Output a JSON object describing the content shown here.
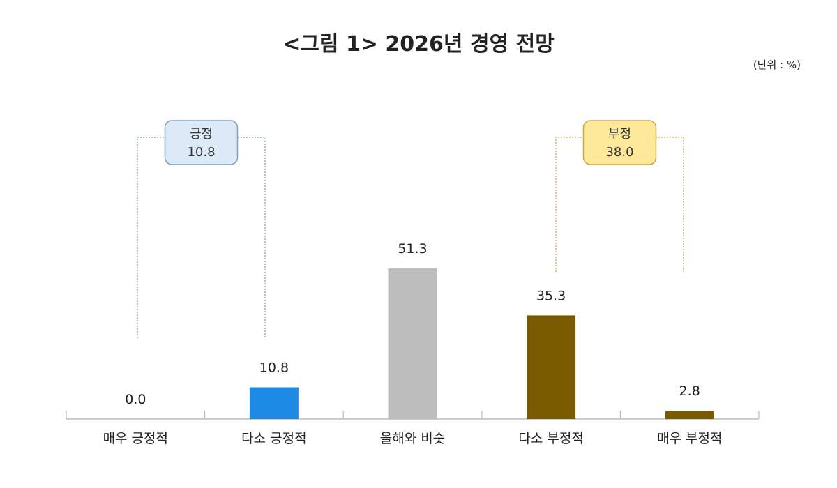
{
  "chart_data": {
    "type": "bar",
    "title": "<그림 1> 2026년 경영 전망",
    "unit": "(단위 : %)",
    "categories": [
      "매우 긍정적",
      "다소 긍정적",
      "올해와 비슷",
      "다소 부정적",
      "매우 부정적"
    ],
    "values": [
      0.0,
      10.8,
      51.3,
      35.3,
      2.8
    ],
    "value_labels": [
      "0.0",
      "10.8",
      "51.3",
      "35.3",
      "2.8"
    ],
    "colors": [
      "#1e88e5",
      "#1e88e5",
      "#bdbdbd",
      "#7a5a00",
      "#7a5a00"
    ],
    "grid": false,
    "groups": [
      {
        "label": "긍정",
        "value": "10.8",
        "categories": [
          0,
          1
        ],
        "fill": "#dce9f7",
        "stroke": "#7f9fbf"
      },
      {
        "label": "부정",
        "value": "38.0",
        "categories": [
          3,
          4
        ],
        "fill": "#fde89a",
        "stroke": "#c9a93f"
      }
    ]
  }
}
